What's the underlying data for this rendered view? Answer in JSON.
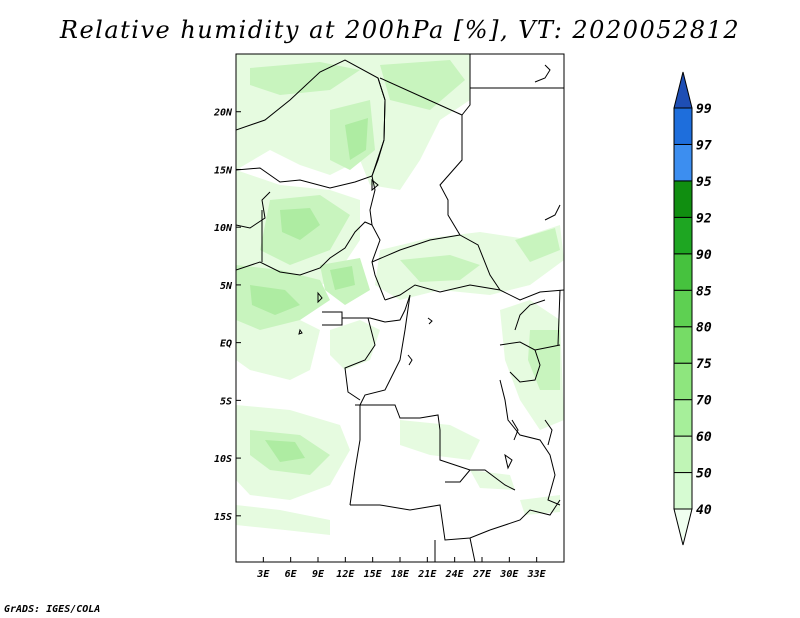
{
  "title": "Relative humidity at 200hPa [%], VT: 2020052812",
  "credit": "GrADS: IGES/COLA",
  "map": {
    "lon_range": [
      0,
      36
    ],
    "lat_range": [
      -19,
      25
    ],
    "lon_ticks": [
      {
        "value": 3,
        "label": "3E"
      },
      {
        "value": 6,
        "label": "6E"
      },
      {
        "value": 9,
        "label": "9E"
      },
      {
        "value": 12,
        "label": "12E"
      },
      {
        "value": 15,
        "label": "15E"
      },
      {
        "value": 18,
        "label": "18E"
      },
      {
        "value": 21,
        "label": "21E"
      },
      {
        "value": 24,
        "label": "24E"
      },
      {
        "value": 27,
        "label": "27E"
      },
      {
        "value": 30,
        "label": "30E"
      },
      {
        "value": 33,
        "label": "33E"
      }
    ],
    "lat_ticks": [
      {
        "value": 20,
        "label": "20N"
      },
      {
        "value": 15,
        "label": "15N"
      },
      {
        "value": 10,
        "label": "10N"
      },
      {
        "value": 5,
        "label": "5N"
      },
      {
        "value": 0,
        "label": "EQ"
      },
      {
        "value": -5,
        "label": "5S"
      },
      {
        "value": -10,
        "label": "10S"
      },
      {
        "value": -15,
        "label": "15S"
      }
    ]
  },
  "colorbar": {
    "levels": [
      "40",
      "50",
      "60",
      "70",
      "75",
      "80",
      "85",
      "90",
      "92",
      "95",
      "97",
      "99"
    ],
    "colors": [
      "#f0fff0",
      "#d6fbd2",
      "#c0f5b6",
      "#a6ef9a",
      "#8ee67e",
      "#76dc66",
      "#5ed052",
      "#46c23e",
      "#1ea622",
      "#108e10",
      "#3c8ef0",
      "#1e6edc",
      "#1e4eb4"
    ]
  },
  "colors": {
    "land_outline": "#000000",
    "rh_40": "#e6fbe0",
    "rh_50": "#c8f4be",
    "rh_60": "#aeeca2"
  }
}
